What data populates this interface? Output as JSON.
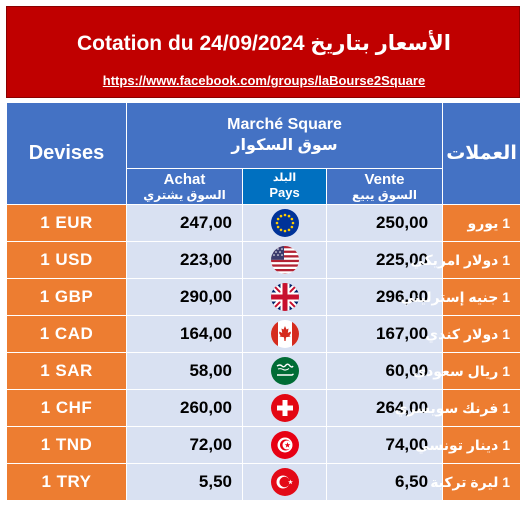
{
  "banner": {
    "title": "Cotation du 24/09/2024 الأسعار بتاريخ",
    "link": "https://www.facebook.com/groups/laBourse2Square"
  },
  "header": {
    "devises": "Devises",
    "arabic_currencies": "العملات",
    "market_fr": "Marché Square",
    "market_ar": "سوق السكوار",
    "achat_fr": "Achat",
    "achat_ar": "السوق يشتري",
    "pays_ar": "البلد",
    "pays_fr": "Pays",
    "vente_fr": "Vente",
    "vente_ar": "السوق يبيع"
  },
  "rows": [
    {
      "currency": "1 EUR",
      "buy": "247,00",
      "sell": "250,00",
      "name_ar": "1 يورو",
      "flag": "eu-flag-icon"
    },
    {
      "currency": "1 USD",
      "buy": "223,00",
      "sell": "225,00",
      "name_ar": "1 دولار امريكي",
      "flag": "us-flag-icon"
    },
    {
      "currency": "1 GBP",
      "buy": "290,00",
      "sell": "296,00",
      "name_ar": "1 جنيه إسترليني",
      "flag": "uk-flag-icon"
    },
    {
      "currency": "1 CAD",
      "buy": "164,00",
      "sell": "167,00",
      "name_ar": "1 دولار كندي",
      "flag": "canada-flag-icon"
    },
    {
      "currency": "1 SAR",
      "buy": "58,00",
      "sell": "60,00",
      "name_ar": "1 ريال سعودي",
      "flag": "saudi-flag-icon"
    },
    {
      "currency": "1 CHF",
      "buy": "260,00",
      "sell": "264,00",
      "name_ar": "1 فرنك سويسري",
      "flag": "swiss-flag-icon"
    },
    {
      "currency": "1 TND",
      "buy": "72,00",
      "sell": "74,00",
      "name_ar": "1 دينار تونسي",
      "flag": "tunisia-flag-icon"
    },
    {
      "currency": "1 TRY",
      "buy": "5,50",
      "sell": "6,50",
      "name_ar": "1 ليرة تركية",
      "flag": "turkey-flag-icon"
    }
  ],
  "colors": {
    "banner": "#c00000",
    "header": "#4472c4",
    "currency_cell": "#ed7d31",
    "value_cell": "#d9e1f2"
  }
}
